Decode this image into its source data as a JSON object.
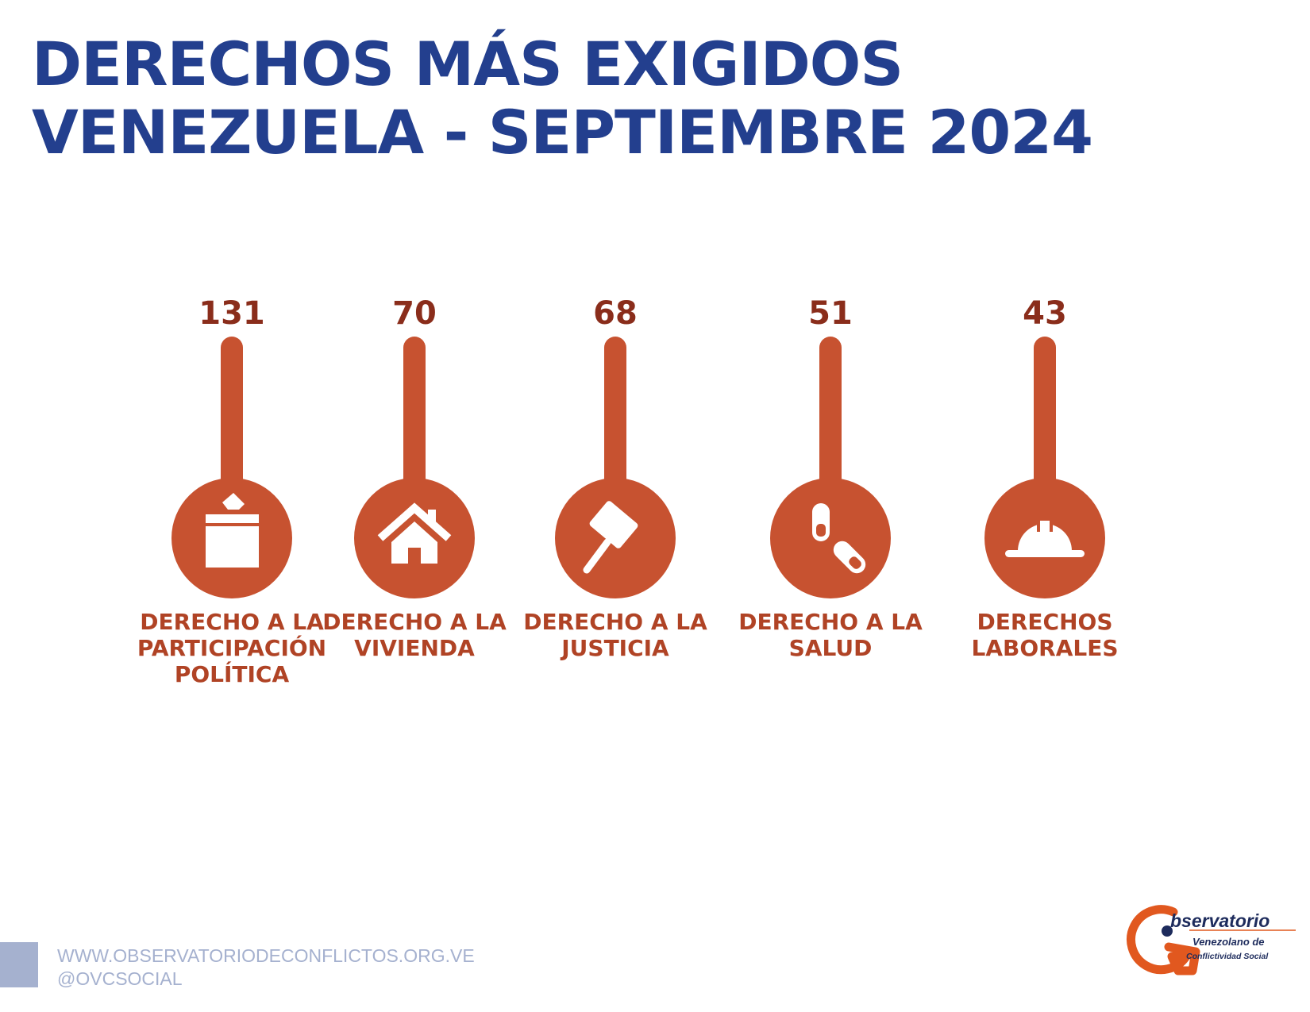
{
  "title_line1": "DERECHOS MÁS EXIGIDOS",
  "title_line2": "VENEZUELA - SEPTIEMBRE 2024",
  "colors": {
    "title": "#233f8e",
    "mark": "#c75230",
    "value": "#8a2d1b",
    "label": "#b04325",
    "footer": "#a5b1cf"
  },
  "chart_data": {
    "type": "bar",
    "title": "DERECHOS MÁS EXIGIDOS VENEZUELA - SEPTIEMBRE 2024",
    "xlabel": "",
    "ylabel": "",
    "categories": [
      "DERECHO A LA PARTICIPACIÓN POLÍTICA",
      "DERECHO A LA VIVIENDA",
      "DERECHO A LA JUSTICIA",
      "DERECHO A LA SALUD",
      "DERECHOS LABORALES"
    ],
    "values": [
      131,
      70,
      68,
      51,
      43
    ],
    "items": [
      {
        "value": 131,
        "label_lines": [
          "DERECHO A LA",
          "PARTICIPACIÓN",
          "POLÍTICA"
        ],
        "icon": "ballot-box-icon"
      },
      {
        "value": 70,
        "label_lines": [
          "DERECHO A LA",
          "VIVIENDA"
        ],
        "icon": "house-icon"
      },
      {
        "value": 68,
        "label_lines": [
          "DERECHO A LA",
          "JUSTICIA"
        ],
        "icon": "gavel-icon"
      },
      {
        "value": 51,
        "label_lines": [
          "DERECHO A LA",
          "SALUD"
        ],
        "icon": "pills-icon"
      },
      {
        "value": 43,
        "label_lines": [
          "DERECHOS",
          "LABORALES"
        ],
        "icon": "hard-hat-icon"
      }
    ]
  },
  "footer": {
    "url": "WWW.OBSERVATORIODECONFLICTOS.ORG.VE",
    "handle": "@OVCSOCIAL"
  },
  "logo": {
    "word": "bservatorio",
    "line2": "Venezolano de",
    "line3": "Conflictividad Social"
  }
}
